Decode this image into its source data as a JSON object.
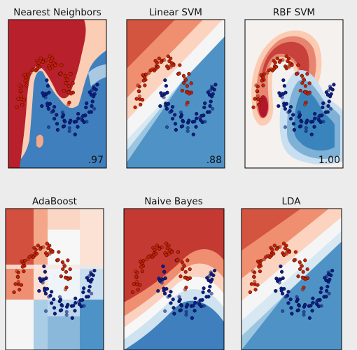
{
  "figure": {
    "background": "#ececec",
    "colors": {
      "red_dark": "#b2182b",
      "red_mid": "#ef8a62",
      "red_light": "#fddbc7",
      "white": "#f7f7f7",
      "blue_light": "#d1e5f0",
      "blue_mid": "#67a9cf",
      "blue_dark": "#2166ac",
      "point_red": "#cc1f00",
      "point_blue": "#0a1e8c"
    }
  },
  "chart_data": [
    {
      "type": "scatter",
      "title": "Nearest Neighbors",
      "score": ".97",
      "dataset": "moons",
      "xlim": [
        -1.5,
        2.5
      ],
      "ylim": [
        -1.5,
        2.0
      ]
    },
    {
      "type": "scatter",
      "title": "Linear SVM",
      "score": ".88",
      "dataset": "moons",
      "xlim": [
        -1.5,
        2.5
      ],
      "ylim": [
        -1.5,
        2.0
      ]
    },
    {
      "type": "scatter",
      "title": "RBF SVM",
      "score": "1.00",
      "dataset": "moons",
      "xlim": [
        -1.5,
        2.5
      ],
      "ylim": [
        -1.5,
        2.0
      ]
    },
    {
      "type": "scatter",
      "title": "AdaBoost",
      "score": "",
      "dataset": "moons",
      "xlim": [
        -1.5,
        2.5
      ],
      "ylim": [
        -1.5,
        2.0
      ]
    },
    {
      "type": "scatter",
      "title": "Naive Bayes",
      "score": "",
      "dataset": "moons",
      "xlim": [
        -1.5,
        2.5
      ],
      "ylim": [
        -1.5,
        2.0
      ]
    },
    {
      "type": "scatter",
      "title": "LDA",
      "score": "",
      "dataset": "moons",
      "xlim": [
        -1.5,
        2.5
      ],
      "ylim": [
        -1.5,
        2.0
      ]
    }
  ]
}
